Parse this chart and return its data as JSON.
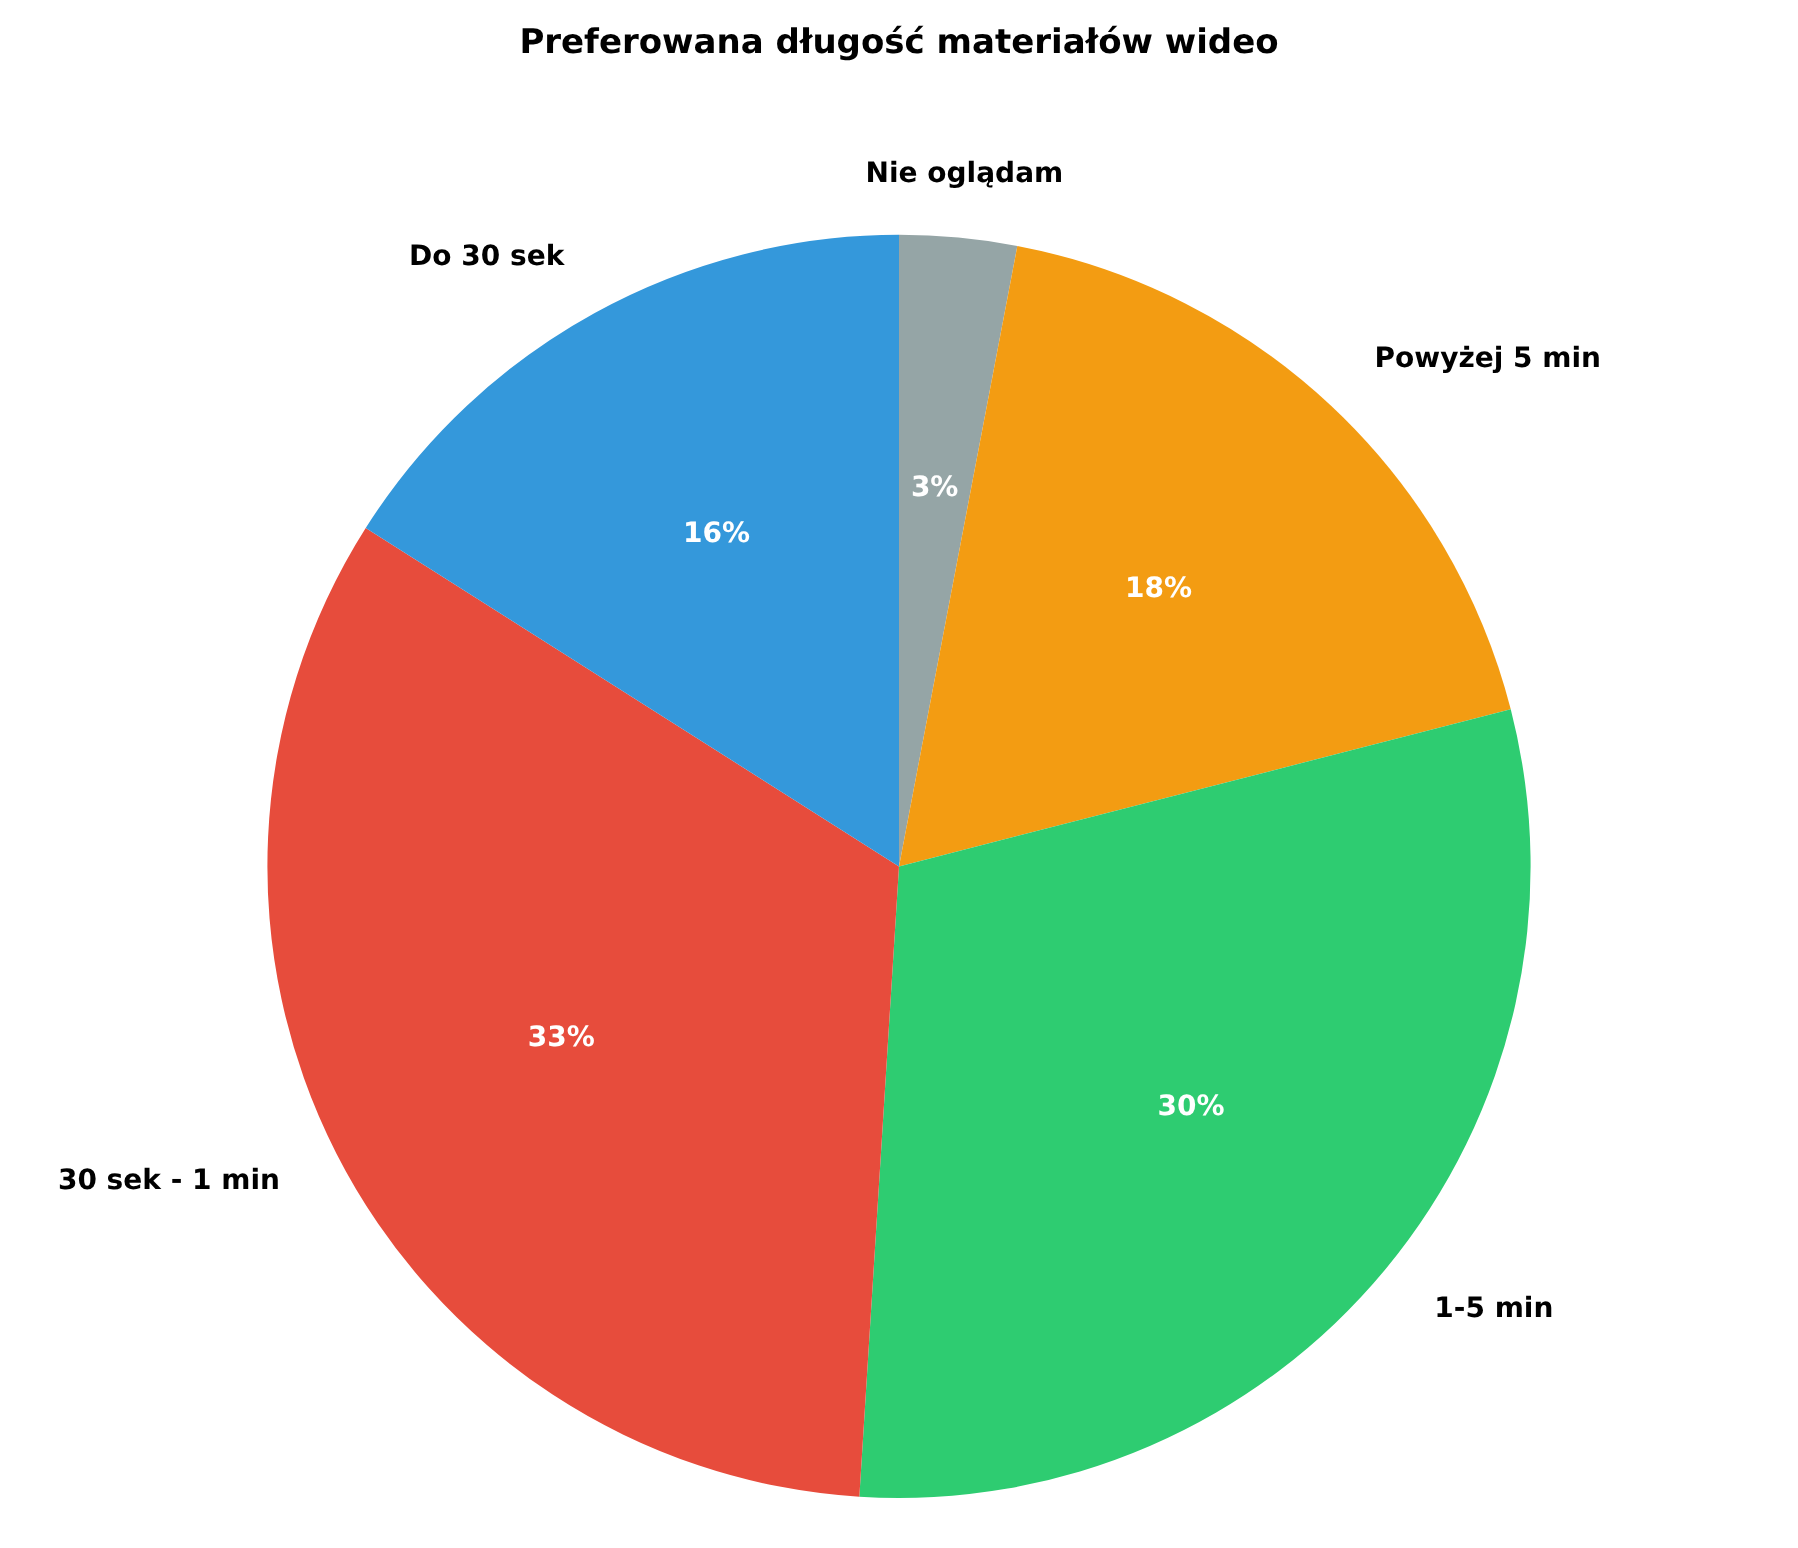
{
  "chart_data": {
    "type": "pie",
    "title": "Preferowana długość materiałów wideo",
    "categories": [
      "Nie oglądam",
      "Powyżej 5 min",
      "1-5 min",
      "30 sek - 1 min",
      "Do 30 sek"
    ],
    "values": [
      3,
      18,
      30,
      33,
      16
    ],
    "colors": [
      "#95a5a6",
      "#f39c12",
      "#2ecc71",
      "#e74c3c",
      "#3498db"
    ],
    "value_labels": [
      "3%",
      "18%",
      "30%",
      "33%",
      "16%"
    ],
    "legend": false
  }
}
